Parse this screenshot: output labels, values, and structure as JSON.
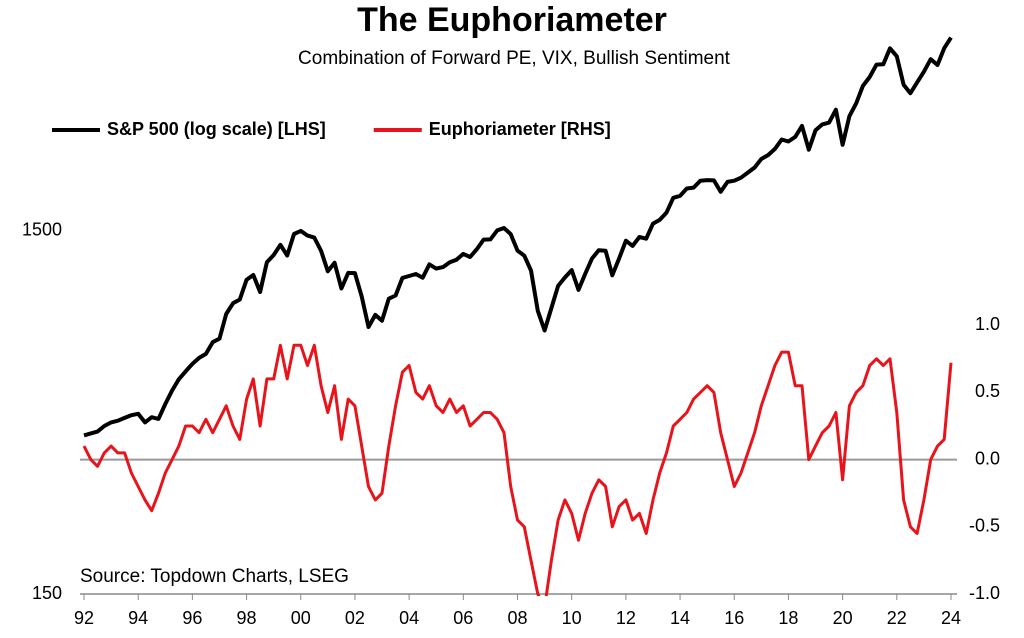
{
  "chart_data": {
    "type": "line",
    "title": "The Euphoriameter",
    "subtitle": "Combination of Forward PE, VIX, Bullish Sentiment",
    "annotation": "Source: Topdown Charts, LSEG",
    "legend": "top-left",
    "zero_line": true,
    "y_scale": "log",
    "x": [
      1992,
      1992.25,
      1992.5,
      1992.75,
      1993,
      1993.25,
      1993.5,
      1993.75,
      1994,
      1994.25,
      1994.5,
      1994.75,
      1995,
      1995.25,
      1995.5,
      1995.75,
      1996,
      1996.25,
      1996.5,
      1996.75,
      1997,
      1997.25,
      1997.5,
      1997.75,
      1998,
      1998.25,
      1998.5,
      1998.75,
      1999,
      1999.25,
      1999.5,
      1999.75,
      2000,
      2000.25,
      2000.5,
      2000.75,
      2001,
      2001.25,
      2001.5,
      2001.75,
      2002,
      2002.25,
      2002.5,
      2002.75,
      2003,
      2003.25,
      2003.5,
      2003.75,
      2004,
      2004.25,
      2004.5,
      2004.75,
      2005,
      2005.25,
      2005.5,
      2005.75,
      2006,
      2006.25,
      2006.5,
      2006.75,
      2007,
      2007.25,
      2007.5,
      2007.75,
      2008,
      2008.25,
      2008.5,
      2008.75,
      2009,
      2009.25,
      2009.5,
      2009.75,
      2010,
      2010.25,
      2010.5,
      2010.75,
      2011,
      2011.25,
      2011.5,
      2011.75,
      2012,
      2012.25,
      2012.5,
      2012.75,
      2013,
      2013.25,
      2013.5,
      2013.75,
      2014,
      2014.25,
      2014.5,
      2014.75,
      2015,
      2015.25,
      2015.5,
      2015.75,
      2016,
      2016.25,
      2016.5,
      2016.75,
      2017,
      2017.25,
      2017.5,
      2017.75,
      2018,
      2018.25,
      2018.5,
      2018.75,
      2019,
      2019.25,
      2019.5,
      2019.75,
      2020,
      2020.25,
      2020.5,
      2020.75,
      2021,
      2021.25,
      2021.5,
      2021.75,
      2022,
      2022.25,
      2022.5,
      2022.75,
      2023,
      2023.25,
      2023.5,
      2023.75,
      2024
    ],
    "xlim": [
      1992,
      2024
    ],
    "xticks": [
      {
        "value": 1992,
        "label": "92"
      },
      {
        "value": 1994,
        "label": "94"
      },
      {
        "value": 1996,
        "label": "96"
      },
      {
        "value": 1998,
        "label": "98"
      },
      {
        "value": 2000,
        "label": "00"
      },
      {
        "value": 2002,
        "label": "02"
      },
      {
        "value": 2004,
        "label": "04"
      },
      {
        "value": 2006,
        "label": "06"
      },
      {
        "value": 2008,
        "label": "08"
      },
      {
        "value": 2010,
        "label": "10"
      },
      {
        "value": 2012,
        "label": "12"
      },
      {
        "value": 2014,
        "label": "14"
      },
      {
        "value": 2016,
        "label": "16"
      },
      {
        "value": 2018,
        "label": "18"
      },
      {
        "value": 2020,
        "label": "20"
      },
      {
        "value": 2022,
        "label": "22"
      },
      {
        "value": 2024,
        "label": "24"
      }
    ],
    "ylim": [
      150,
      6000
    ],
    "yticks": [
      150,
      1500
    ],
    "y2lim": [
      -1,
      3.33
    ],
    "y2ticks": [
      {
        "value": -1,
        "label": "-1.0"
      },
      -0.5,
      {
        "value": 0,
        "label": "0.0"
      },
      0.5,
      {
        "value": 1,
        "label": "1.0"
      }
    ],
    "series": [
      {
        "name": "S&P 500 (log scale) [LHS]",
        "color": "#000000",
        "axis": "y",
        "values": [
          410,
          415,
          420,
          435,
          445,
          450,
          458,
          466,
          470,
          445,
          460,
          455,
          500,
          545,
          585,
          615,
          645,
          670,
          687,
          740,
          757,
          885,
          947,
          970,
          1100,
          1133,
          1017,
          1229,
          1286,
          1372,
          1282,
          1469,
          1498,
          1454,
          1436,
          1320,
          1160,
          1224,
          1040,
          1148,
          1147,
          989,
          815,
          880,
          848,
          975,
          995,
          1112,
          1126,
          1140,
          1114,
          1212,
          1180,
          1191,
          1228,
          1248,
          1295,
          1270,
          1335,
          1418,
          1420,
          1503,
          1526,
          1468,
          1322,
          1280,
          1166,
          903,
          797,
          919,
          1057,
          1115,
          1169,
          1031,
          1141,
          1258,
          1326,
          1321,
          1131,
          1258,
          1408,
          1362,
          1441,
          1426,
          1569,
          1606,
          1682,
          1848,
          1872,
          1960,
          1972,
          2059,
          2068,
          2063,
          1920,
          2044,
          2060,
          2099,
          2168,
          2239,
          2363,
          2423,
          2519,
          2674,
          2641,
          2718,
          2914,
          2507,
          2834,
          2942,
          2977,
          3231,
          2585,
          3100,
          3363,
          3756,
          3973,
          4298,
          4308,
          4766,
          4530,
          3785,
          3586,
          3840,
          4109,
          4450,
          4288,
          4770,
          5100
        ]
      },
      {
        "name": "Euphoriameter [RHS]",
        "color": "#e8141b",
        "axis": "y2",
        "values": [
          0.1,
          0.0,
          -0.05,
          0.05,
          0.1,
          0.05,
          0.05,
          -0.1,
          -0.2,
          -0.3,
          -0.38,
          -0.25,
          -0.1,
          0.0,
          0.1,
          0.25,
          0.25,
          0.2,
          0.3,
          0.2,
          0.3,
          0.4,
          0.25,
          0.15,
          0.45,
          0.6,
          0.25,
          0.6,
          0.6,
          0.85,
          0.6,
          0.85,
          0.85,
          0.7,
          0.85,
          0.55,
          0.35,
          0.55,
          0.15,
          0.45,
          0.4,
          0.1,
          -0.2,
          -0.3,
          -0.25,
          0.1,
          0.4,
          0.65,
          0.7,
          0.5,
          0.45,
          0.55,
          0.4,
          0.35,
          0.45,
          0.35,
          0.4,
          0.25,
          0.3,
          0.35,
          0.35,
          0.3,
          0.2,
          -0.2,
          -0.45,
          -0.5,
          -0.75,
          -1.0,
          -1.1,
          -0.75,
          -0.45,
          -0.3,
          -0.4,
          -0.6,
          -0.4,
          -0.25,
          -0.15,
          -0.2,
          -0.5,
          -0.35,
          -0.3,
          -0.45,
          -0.4,
          -0.55,
          -0.3,
          -0.1,
          0.05,
          0.25,
          0.3,
          0.35,
          0.45,
          0.5,
          0.55,
          0.5,
          0.2,
          0.0,
          -0.2,
          -0.1,
          0.05,
          0.2,
          0.4,
          0.55,
          0.7,
          0.8,
          0.8,
          0.55,
          0.55,
          0.0,
          0.1,
          0.2,
          0.25,
          0.35,
          -0.15,
          0.4,
          0.5,
          0.55,
          0.7,
          0.75,
          0.7,
          0.75,
          0.35,
          -0.3,
          -0.5,
          -0.55,
          -0.3,
          0.0,
          0.1,
          0.15,
          0.72
        ]
      }
    ]
  }
}
